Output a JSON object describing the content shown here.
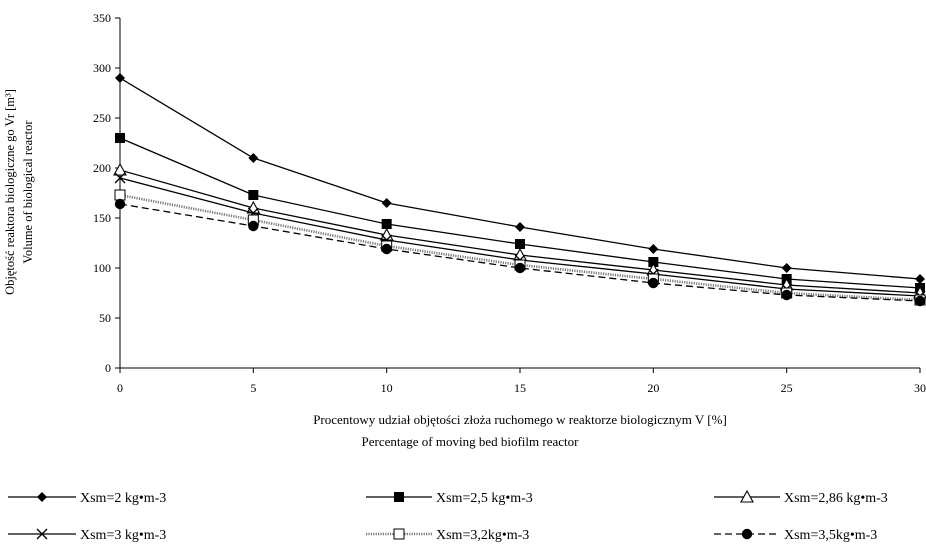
{
  "chart_data": {
    "type": "line",
    "ylabel_pl": "Objętość reaktora biologiczne go Vr [m³]",
    "ylabel_en": "Volume of biological reactor",
    "xlabel_pl": "Procentowy udział objętości złoża ruchomego w reaktorze biologicznym V [%]",
    "xlabel_en": "Percentage of moving bed biofilm reactor",
    "x": [
      0,
      5,
      10,
      15,
      20,
      25,
      30
    ],
    "xticks": [
      "0",
      "5",
      "10",
      "15",
      "20",
      "25",
      "30"
    ],
    "ylim": [
      0,
      350
    ],
    "yticks": [
      "0",
      "50",
      "100",
      "150",
      "200",
      "250",
      "300",
      "350"
    ],
    "grid": false,
    "legend_position": "bottom",
    "series": [
      {
        "name": "Xsm=2 kg•m-3",
        "marker": "diamond",
        "dash": "solid",
        "values": [
          290,
          210,
          165,
          141,
          119,
          100,
          89
        ]
      },
      {
        "name": "Xsm=2,5 kg•m-3",
        "marker": "square",
        "dash": "solid",
        "values": [
          230,
          173,
          144,
          124,
          106,
          89,
          80
        ]
      },
      {
        "name": "Xsm=2,86 kg•m-3",
        "marker": "triangle",
        "dash": "solid",
        "values": [
          198,
          160,
          133,
          113,
          98,
          83,
          75
        ]
      },
      {
        "name": "Xsm=3 kg•m-3",
        "marker": "cross",
        "dash": "solid",
        "values": [
          190,
          155,
          128,
          108,
          94,
          79,
          72
        ]
      },
      {
        "name": "Xsm=3,2kg•m-3",
        "marker": "open-square",
        "dash": "dotted",
        "values": [
          173,
          148,
          122,
          103,
          89,
          75,
          68
        ]
      },
      {
        "name": "Xsm=3,5kg•m-3",
        "marker": "circle",
        "dash": "dashed",
        "values": [
          164,
          142,
          119,
          100,
          85,
          73,
          67
        ]
      }
    ]
  }
}
